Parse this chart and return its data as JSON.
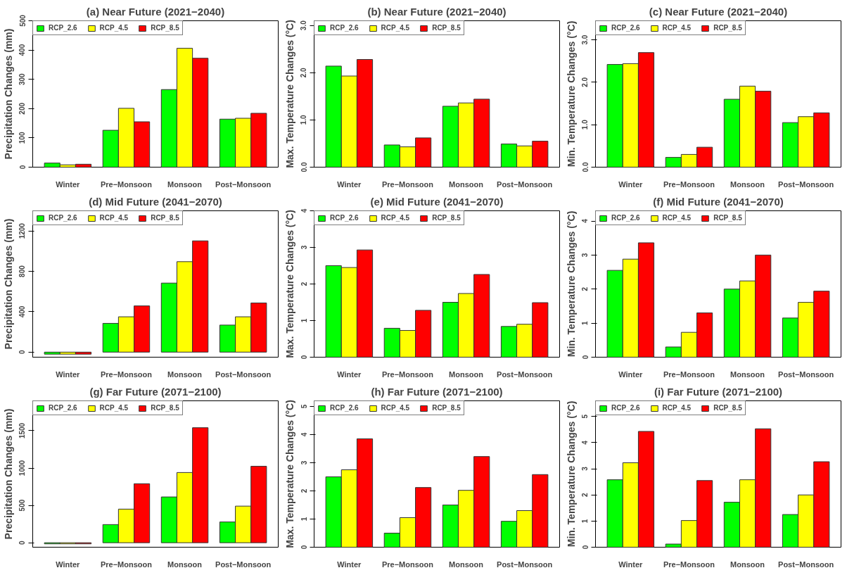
{
  "chart_data": [
    {
      "type": "bar",
      "title": "(a) Near Future (2021−2040)",
      "ylabel": "Precipitation Changes (mm)",
      "categories": [
        "Winter",
        "Pre−Monsoon",
        "Monsoon",
        "Post−Monsoon"
      ],
      "ylim": [
        0,
        500
      ],
      "yticks": [
        0,
        100,
        200,
        300,
        400,
        500
      ],
      "legend": "top left",
      "series": [
        {
          "name": "RCP_2.6",
          "color": "#00ff00",
          "values": [
            14,
            126,
            265,
            164
          ]
        },
        {
          "name": "RCP_4.5",
          "color": "#ffff00",
          "values": [
            8,
            201,
            406,
            167
          ]
        },
        {
          "name": "RCP_8.5",
          "color": "#ff0000",
          "values": [
            10,
            155,
            372,
            184
          ]
        }
      ]
    },
    {
      "type": "bar",
      "title": "(b) Near Future (2021−2040)",
      "ylabel": "Max. Temperature Changes (°C)",
      "categories": [
        "Winter",
        "Pre−Monsoon",
        "Monsoon",
        "Post−Monsoon"
      ],
      "ylim": [
        0,
        3.1
      ],
      "yticks": [
        {
          "value": 0,
          "label": "0.0"
        },
        {
          "value": 1,
          "label": "1.0"
        },
        {
          "value": 2,
          "label": "2.0"
        },
        {
          "value": 3,
          "label": "3.0"
        }
      ],
      "legend": "top left",
      "series": [
        {
          "name": "RCP_2.6",
          "color": "#00ff00",
          "values": [
            2.14,
            0.47,
            1.29,
            0.49
          ]
        },
        {
          "name": "RCP_4.5",
          "color": "#ffff00",
          "values": [
            1.93,
            0.43,
            1.36,
            0.45
          ]
        },
        {
          "name": "RCP_8.5",
          "color": "#ff0000",
          "values": [
            2.28,
            0.62,
            1.44,
            0.55
          ]
        }
      ]
    },
    {
      "type": "bar",
      "title": "(c) Near Future (2021−2040)",
      "ylabel": "Min. Temperature Changes (°C)",
      "categories": [
        "Winter",
        "Pre−Monsoon",
        "Monsoon",
        "Post−Monsoon"
      ],
      "ylim": [
        0,
        3.45
      ],
      "yticks": [
        {
          "value": 0,
          "label": "0.0"
        },
        {
          "value": 1,
          "label": "1.0"
        },
        {
          "value": 2,
          "label": "2.0"
        },
        {
          "value": 3,
          "label": "3.0"
        }
      ],
      "legend": "top left",
      "series": [
        {
          "name": "RCP_2.6",
          "color": "#00ff00",
          "values": [
            2.42,
            0.23,
            1.6,
            1.05
          ]
        },
        {
          "name": "RCP_4.5",
          "color": "#ffff00",
          "values": [
            2.44,
            0.3,
            1.91,
            1.19
          ]
        },
        {
          "name": "RCP_8.5",
          "color": "#ff0000",
          "values": [
            2.7,
            0.47,
            1.79,
            1.28
          ]
        }
      ]
    },
    {
      "type": "bar",
      "title": "(d) Mid Future (2041−2070)",
      "ylabel": "Precipitation Changes (mm)",
      "categories": [
        "Winter",
        "Pre−Monsoon",
        "Monsoon",
        "Post−Monsoon"
      ],
      "ylim": [
        -50,
        1400
      ],
      "yticks": [
        0,
        400,
        800,
        1200
      ],
      "legend": "top left",
      "series": [
        {
          "name": "RCP_2.6",
          "color": "#00ff00",
          "values": [
            -20,
            285,
            684,
            268
          ]
        },
        {
          "name": "RCP_4.5",
          "color": "#ffff00",
          "values": [
            -20,
            350,
            896,
            350
          ]
        },
        {
          "name": "RCP_8.5",
          "color": "#ff0000",
          "values": [
            -20,
            458,
            1102,
            487
          ]
        }
      ]
    },
    {
      "type": "bar",
      "title": "(e) Mid Future (2041−2070)",
      "ylabel": "Max. Temperature Changes (°C)",
      "categories": [
        "Winter",
        "Pre−Monsoon",
        "Monsoon",
        "Post−Monsoon"
      ],
      "ylim": [
        0,
        4
      ],
      "yticks": [
        0,
        1,
        2,
        3,
        4
      ],
      "legend": "top left",
      "series": [
        {
          "name": "RCP_2.6",
          "color": "#00ff00",
          "values": [
            2.5,
            0.79,
            1.5,
            0.84
          ]
        },
        {
          "name": "RCP_4.5",
          "color": "#ffff00",
          "values": [
            2.45,
            0.73,
            1.74,
            0.9
          ]
        },
        {
          "name": "RCP_8.5",
          "color": "#ff0000",
          "values": [
            2.93,
            1.28,
            2.26,
            1.49
          ]
        }
      ]
    },
    {
      "type": "bar",
      "title": "(f) Mid Future (2041−2070)",
      "ylabel": "Min. Temperature Changes (°C)",
      "categories": [
        "Winter",
        "Pre−Monsoon",
        "Monsoon",
        "Post−Monsoon"
      ],
      "ylim": [
        0,
        4.3
      ],
      "yticks": [
        0,
        1,
        2,
        3,
        4
      ],
      "legend": "top left",
      "series": [
        {
          "name": "RCP_2.6",
          "color": "#00ff00",
          "values": [
            2.55,
            0.3,
            2.0,
            1.15
          ]
        },
        {
          "name": "RCP_4.5",
          "color": "#ffff00",
          "values": [
            2.88,
            0.73,
            2.24,
            1.61
          ]
        },
        {
          "name": "RCP_8.5",
          "color": "#ff0000",
          "values": [
            3.36,
            1.3,
            3.0,
            1.94
          ]
        }
      ]
    },
    {
      "type": "bar",
      "title": "(g) Far Future (2071−2100)",
      "ylabel": "Precipitation Changes (mm)",
      "categories": [
        "Winter",
        "Pre−Monsoon",
        "Monsoon",
        "Post−Monsoon"
      ],
      "ylim": [
        -60,
        1900
      ],
      "yticks": [
        0,
        500,
        1000,
        1500
      ],
      "legend": "top left",
      "series": [
        {
          "name": "RCP_2.6",
          "color": "#00ff00",
          "values": [
            -15,
            243,
            613,
            278
          ]
        },
        {
          "name": "RCP_4.5",
          "color": "#ffff00",
          "values": [
            -15,
            450,
            940,
            490
          ]
        },
        {
          "name": "RCP_8.5",
          "color": "#ff0000",
          "values": [
            -15,
            790,
            1540,
            1024
          ]
        }
      ]
    },
    {
      "type": "bar",
      "title": "(h) Far Future (2071−2100)",
      "ylabel": "Max. Temperature Changes (°C)",
      "categories": [
        "Winter",
        "Pre−Monsoon",
        "Monsoon",
        "Post−Monsoon"
      ],
      "ylim": [
        0,
        5.2
      ],
      "yticks": [
        0,
        1,
        2,
        3,
        4,
        5
      ],
      "legend": "top left",
      "series": [
        {
          "name": "RCP_2.6",
          "color": "#00ff00",
          "values": [
            2.5,
            0.5,
            1.5,
            0.92
          ]
        },
        {
          "name": "RCP_4.5",
          "color": "#ffff00",
          "values": [
            2.75,
            1.05,
            2.02,
            1.3
          ]
        },
        {
          "name": "RCP_8.5",
          "color": "#ff0000",
          "values": [
            3.85,
            2.12,
            3.22,
            2.58
          ]
        }
      ]
    },
    {
      "type": "bar",
      "title": "(i) Far Future (2071−2100)",
      "ylabel": "Min. Temperature Changes (°C)",
      "categories": [
        "Winter",
        "Pre−Monsoon",
        "Monsoon",
        "Post−Monsoon"
      ],
      "ylim": [
        0,
        5.6
      ],
      "yticks": [
        0,
        1,
        2,
        3,
        4,
        5
      ],
      "legend": "top left",
      "series": [
        {
          "name": "RCP_2.6",
          "color": "#00ff00",
          "values": [
            2.58,
            0.12,
            1.72,
            1.25
          ]
        },
        {
          "name": "RCP_4.5",
          "color": "#ffff00",
          "values": [
            3.23,
            1.02,
            2.58,
            2.0
          ]
        },
        {
          "name": "RCP_8.5",
          "color": "#ff0000",
          "values": [
            4.43,
            2.55,
            4.53,
            3.27
          ]
        }
      ]
    }
  ]
}
